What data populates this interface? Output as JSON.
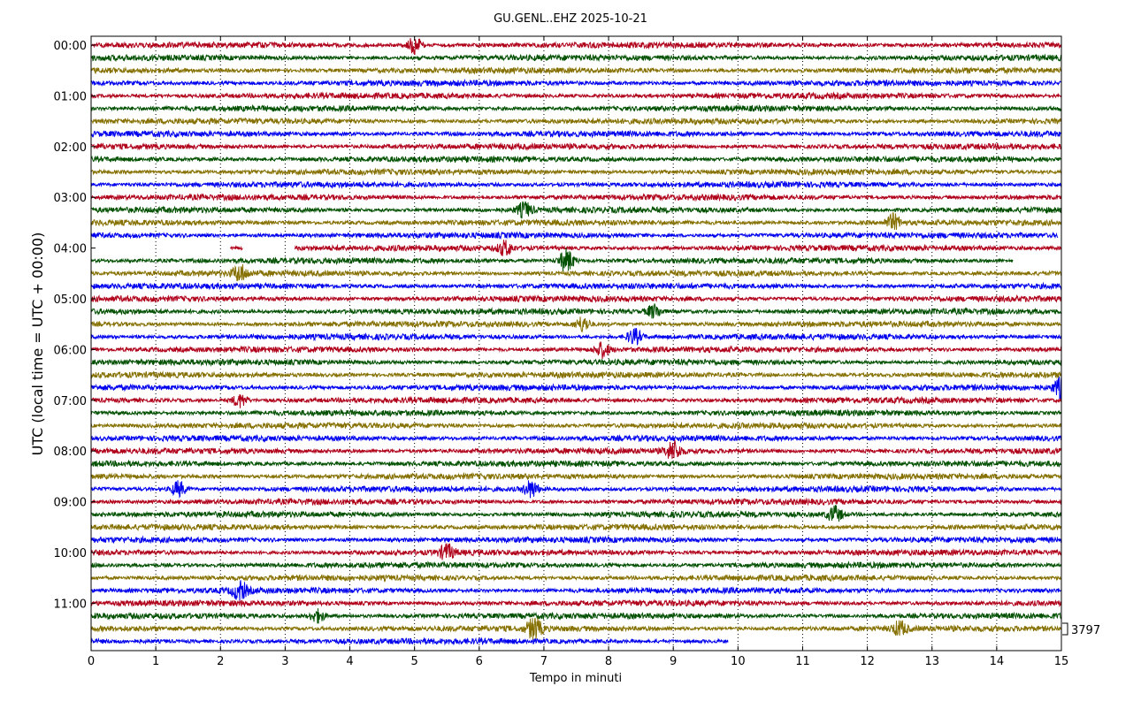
{
  "chart_data": {
    "type": "line",
    "title": "GU.GENL..EHZ 2025-10-21",
    "xlabel": "Tempo in minuti",
    "ylabel": "UTC (local time = UTC + 00:00)",
    "xlim": [
      0,
      15
    ],
    "x_ticks": [
      "0",
      "1",
      "2",
      "3",
      "4",
      "5",
      "6",
      "7",
      "8",
      "9",
      "10",
      "11",
      "12",
      "13",
      "14",
      "15"
    ],
    "y_tick_labels": [
      "00:00",
      "01:00",
      "02:00",
      "03:00",
      "04:00",
      "05:00",
      "06:00",
      "07:00",
      "08:00",
      "09:00",
      "10:00",
      "11:00"
    ],
    "rows_per_hour": 4,
    "minutes_per_row": 15,
    "row_count": 48,
    "row_colors": [
      "#b0001a",
      "#005000",
      "#857000",
      "#0000ee"
    ],
    "grid": "vertical dotted",
    "scale_label": "3797",
    "gaps": [
      {
        "row": 16,
        "from": 0,
        "to": 2.15
      },
      {
        "row": 16,
        "from": 2.35,
        "to": 3.15
      },
      {
        "row": 17,
        "from": 14.25,
        "to": 15
      },
      {
        "row": 15,
        "from": 14.95,
        "to": 15
      },
      {
        "row": 47,
        "from": 9.85,
        "to": 15
      }
    ],
    "events": [
      {
        "row": 0,
        "minute": 5.0,
        "amp": 1.7
      },
      {
        "row": 13,
        "minute": 6.7,
        "amp": 1.5
      },
      {
        "row": 14,
        "minute": 12.4,
        "amp": 1.6
      },
      {
        "row": 16,
        "minute": 6.4,
        "amp": 1.4
      },
      {
        "row": 17,
        "minute": 7.35,
        "amp": 2.4
      },
      {
        "row": 18,
        "minute": 2.3,
        "amp": 1.6
      },
      {
        "row": 21,
        "minute": 8.7,
        "amp": 1.4
      },
      {
        "row": 22,
        "minute": 7.6,
        "amp": 1.5
      },
      {
        "row": 23,
        "minute": 8.4,
        "amp": 1.6
      },
      {
        "row": 24,
        "minute": 7.9,
        "amp": 1.5
      },
      {
        "row": 27,
        "minute": 15.0,
        "amp": 2.0
      },
      {
        "row": 28,
        "minute": 2.3,
        "amp": 1.4
      },
      {
        "row": 32,
        "minute": 9.0,
        "amp": 1.9
      },
      {
        "row": 35,
        "minute": 1.35,
        "amp": 1.6
      },
      {
        "row": 35,
        "minute": 6.8,
        "amp": 1.7
      },
      {
        "row": 37,
        "minute": 11.5,
        "amp": 1.6
      },
      {
        "row": 40,
        "minute": 5.5,
        "amp": 1.5
      },
      {
        "row": 43,
        "minute": 2.3,
        "amp": 1.8
      },
      {
        "row": 45,
        "minute": 3.5,
        "amp": 1.3
      },
      {
        "row": 46,
        "minute": 6.85,
        "amp": 2.2
      },
      {
        "row": 46,
        "minute": 12.5,
        "amp": 1.4
      }
    ]
  }
}
